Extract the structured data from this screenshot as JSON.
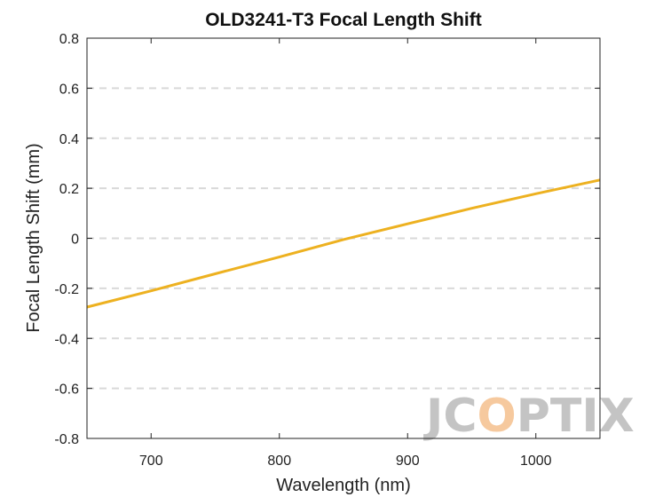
{
  "chart_data": {
    "type": "line",
    "title": "OLD3241-T3 Focal Length Shift",
    "xlabel": "Wavelength (nm)",
    "ylabel": "Focal Length Shift (mm)",
    "xlim": [
      650,
      1050
    ],
    "ylim": [
      -0.8,
      0.8
    ],
    "xticks": [
      700,
      800,
      900,
      1000
    ],
    "yticks": [
      -0.8,
      -0.6,
      -0.4,
      -0.2,
      0,
      0.2,
      0.4,
      0.6,
      0.8
    ],
    "xtick_labels": [
      "700",
      "800",
      "900",
      "1000"
    ],
    "ytick_labels": [
      "-0.8",
      "-0.6",
      "-0.4",
      "-0.2",
      "0",
      "0.2",
      "0.4",
      "0.6",
      "0.8"
    ],
    "grid": "horizontal-dashed",
    "series": [
      {
        "color": "#EDB120",
        "x": [
          650,
          700,
          750,
          800,
          850,
          900,
          950,
          1000,
          1050
        ],
        "y": [
          -0.275,
          -0.21,
          -0.142,
          -0.075,
          -0.005,
          0.058,
          0.12,
          0.178,
          0.233
        ]
      }
    ]
  },
  "watermark": {
    "prefix": "JC",
    "accent": "O",
    "suffix": "PTIX"
  }
}
